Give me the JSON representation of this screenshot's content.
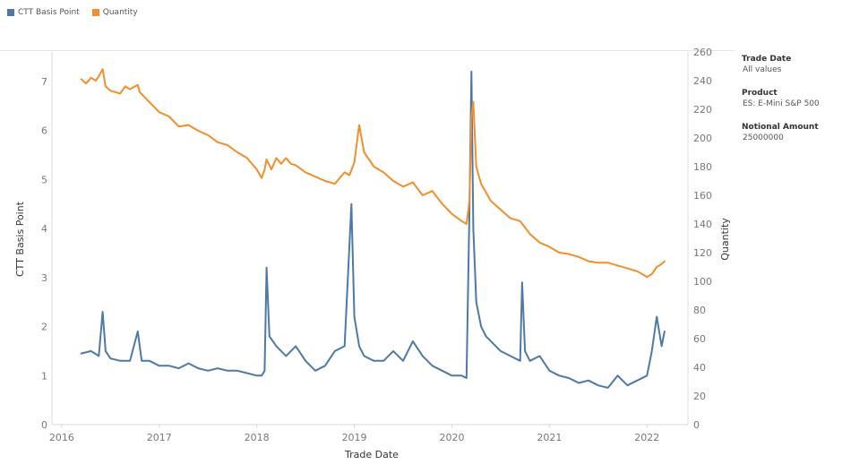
{
  "legend": {
    "items": [
      {
        "label": "CTT Basis Point",
        "color": "#4e79a7"
      },
      {
        "label": "Quantity",
        "color": "#f28e2b"
      }
    ]
  },
  "filters": [
    {
      "label": "Trade Date",
      "value": "All values"
    },
    {
      "label": "Product",
      "value": "ES: E-Mini S&P 500"
    },
    {
      "label": "Notional Amount",
      "value": "25000000"
    }
  ],
  "chart_data": {
    "type": "line",
    "xlabel": "Trade Date",
    "ylabel_left": "CTT Basis Point",
    "ylabel_right": "Quantity",
    "x_ticks": [
      "2016",
      "2017",
      "2018",
      "2019",
      "2020",
      "2021",
      "2022"
    ],
    "xlim": [
      2015.9,
      2022.42
    ],
    "ylim_left": [
      0,
      7.6
    ],
    "ylim_right": [
      0,
      260
    ],
    "y_ticks_left": [
      0,
      1,
      2,
      3,
      4,
      5,
      6,
      7
    ],
    "y_ticks_right": [
      0,
      20,
      40,
      60,
      80,
      100,
      120,
      140,
      160,
      180,
      200,
      220,
      240,
      260
    ],
    "series": [
      {
        "name": "CTT Basis Point",
        "axis": "left",
        "color": "#4e79a7",
        "x": [
          2016.2,
          2016.3,
          2016.38,
          2016.42,
          2016.45,
          2016.5,
          2016.6,
          2016.7,
          2016.78,
          2016.82,
          2016.9,
          2017.0,
          2017.1,
          2017.2,
          2017.3,
          2017.4,
          2017.5,
          2017.6,
          2017.7,
          2017.8,
          2017.9,
          2018.0,
          2018.05,
          2018.08,
          2018.1,
          2018.13,
          2018.2,
          2018.3,
          2018.4,
          2018.5,
          2018.6,
          2018.7,
          2018.8,
          2018.9,
          2018.97,
          2019.0,
          2019.05,
          2019.1,
          2019.2,
          2019.3,
          2019.4,
          2019.5,
          2019.6,
          2019.7,
          2019.8,
          2019.9,
          2020.0,
          2020.1,
          2020.15,
          2020.18,
          2020.2,
          2020.22,
          2020.25,
          2020.3,
          2020.35,
          2020.4,
          2020.5,
          2020.6,
          2020.7,
          2020.72,
          2020.75,
          2020.8,
          2020.9,
          2021.0,
          2021.1,
          2021.2,
          2021.25,
          2021.3,
          2021.4,
          2021.5,
          2021.6,
          2021.7,
          2021.8,
          2021.9,
          2022.0,
          2022.05,
          2022.1,
          2022.15,
          2022.18
        ],
        "values": [
          1.45,
          1.5,
          1.4,
          2.3,
          1.5,
          1.35,
          1.3,
          1.3,
          1.9,
          1.3,
          1.3,
          1.2,
          1.2,
          1.15,
          1.25,
          1.15,
          1.1,
          1.15,
          1.1,
          1.1,
          1.05,
          1.0,
          1.0,
          1.1,
          3.2,
          1.8,
          1.6,
          1.4,
          1.6,
          1.3,
          1.1,
          1.2,
          1.5,
          1.6,
          4.5,
          2.2,
          1.6,
          1.4,
          1.3,
          1.3,
          1.5,
          1.3,
          1.7,
          1.4,
          1.2,
          1.1,
          1.0,
          1.0,
          0.95,
          4.4,
          7.2,
          4.0,
          2.5,
          2.0,
          1.8,
          1.7,
          1.5,
          1.4,
          1.3,
          2.9,
          1.5,
          1.3,
          1.4,
          1.1,
          1.0,
          0.95,
          0.9,
          0.85,
          0.9,
          0.8,
          0.75,
          1.0,
          0.8,
          0.9,
          1.0,
          1.5,
          2.2,
          1.6,
          1.9
        ]
      },
      {
        "name": "Quantity",
        "axis": "right",
        "color": "#f28e2b",
        "x": [
          2016.2,
          2016.25,
          2016.3,
          2016.35,
          2016.38,
          2016.42,
          2016.45,
          2016.5,
          2016.6,
          2016.65,
          2016.7,
          2016.78,
          2016.8,
          2016.9,
          2017.0,
          2017.1,
          2017.2,
          2017.3,
          2017.4,
          2017.5,
          2017.6,
          2017.7,
          2017.8,
          2017.9,
          2018.0,
          2018.05,
          2018.08,
          2018.1,
          2018.15,
          2018.2,
          2018.25,
          2018.3,
          2018.35,
          2018.4,
          2018.5,
          2018.6,
          2018.7,
          2018.8,
          2018.9,
          2018.95,
          2019.0,
          2019.05,
          2019.1,
          2019.2,
          2019.3,
          2019.4,
          2019.5,
          2019.6,
          2019.7,
          2019.8,
          2019.9,
          2020.0,
          2020.1,
          2020.15,
          2020.18,
          2020.2,
          2020.22,
          2020.25,
          2020.3,
          2020.35,
          2020.4,
          2020.5,
          2020.6,
          2020.7,
          2020.8,
          2020.9,
          2021.0,
          2021.1,
          2021.2,
          2021.3,
          2021.4,
          2021.5,
          2021.6,
          2021.7,
          2021.8,
          2021.9,
          2022.0,
          2022.05,
          2022.1,
          2022.15,
          2022.18
        ],
        "values": [
          241,
          238,
          242,
          240,
          243,
          248,
          236,
          233,
          231,
          236,
          234,
          237,
          232,
          225,
          218,
          215,
          208,
          209,
          205,
          202,
          197,
          195,
          190,
          186,
          178,
          172,
          178,
          185,
          178,
          186,
          182,
          186,
          182,
          181,
          176,
          173,
          170,
          168,
          176,
          174,
          183,
          209,
          190,
          180,
          176,
          170,
          166,
          169,
          160,
          163,
          154,
          147,
          142,
          140,
          156,
          215,
          225,
          180,
          168,
          162,
          156,
          150,
          144,
          142,
          133,
          127,
          124,
          120,
          119,
          117,
          114,
          113,
          113,
          111,
          109,
          107,
          103,
          105,
          110,
          112,
          114
        ]
      }
    ]
  }
}
